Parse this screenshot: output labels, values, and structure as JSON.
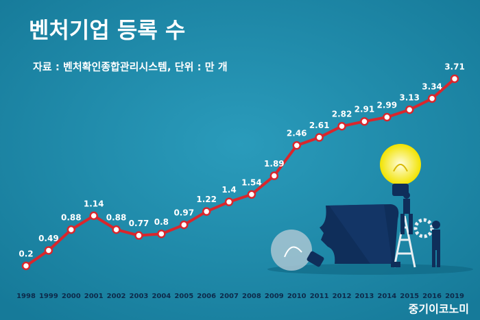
{
  "chart_data": {
    "type": "line",
    "title": "벤처기업 등록 수",
    "subtitle": "자료 : 벤처확인종합관리시스템, 단위 : 만 개",
    "source": "중기이코노미",
    "categories": [
      "1998",
      "1999",
      "2000",
      "2001",
      "2002",
      "2003",
      "2004",
      "2005",
      "2006",
      "2007",
      "2008",
      "2009",
      "2010",
      "2011",
      "2012",
      "2013",
      "2014",
      "2015",
      "2016",
      "2019"
    ],
    "series": [
      {
        "name": "벤처기업 등록 수",
        "color": "#d9262c",
        "values": [
          0.2,
          0.49,
          0.88,
          1.14,
          0.88,
          0.77,
          0.8,
          0.97,
          1.22,
          1.4,
          1.54,
          1.89,
          2.46,
          2.61,
          2.82,
          2.91,
          2.99,
          3.13,
          3.34,
          3.71
        ]
      }
    ]
  }
}
